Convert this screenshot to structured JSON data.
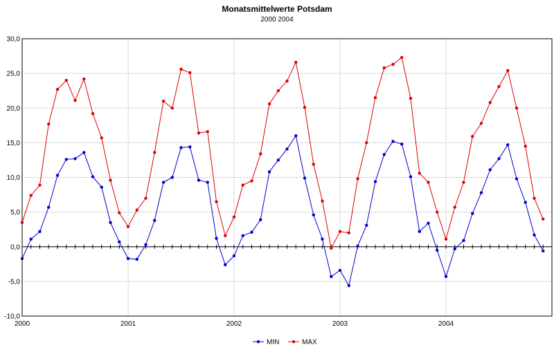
{
  "chart_data": {
    "type": "line",
    "title": "Monatsmittelwerte Potsdam",
    "subtitle": "2000 2004",
    "xlabel": "",
    "ylabel": "",
    "ylim": [
      -10,
      30
    ],
    "y_ticks": [
      "-10,0",
      "-5,0",
      "0,0",
      "5,0",
      "10,0",
      "15,0",
      "20,0",
      "25,0",
      "30,0"
    ],
    "y_tick_values": [
      -10,
      -5,
      0,
      5,
      10,
      15,
      20,
      25,
      30
    ],
    "x_ticks": [
      "2000",
      "2001",
      "2002",
      "2003",
      "2004"
    ],
    "x_tick_years": [
      2000,
      2001,
      2002,
      2003,
      2004
    ],
    "x_start": "2000-01",
    "x_end": "2004-12",
    "grid": true,
    "legend_position": "bottom",
    "series": [
      {
        "name": "MIN",
        "color": "#0000cc",
        "values": [
          -1.7,
          1.1,
          2.2,
          5.7,
          10.3,
          12.6,
          12.7,
          13.6,
          10.1,
          8.6,
          3.5,
          0.7,
          -1.7,
          -1.8,
          0.3,
          3.8,
          9.3,
          10.0,
          14.3,
          14.4,
          9.6,
          9.3,
          1.2,
          -2.6,
          -1.3,
          1.6,
          2.1,
          3.9,
          10.8,
          12.5,
          14.1,
          16.0,
          9.9,
          4.6,
          1.1,
          -4.3,
          -3.4,
          -5.6,
          0.1,
          3.1,
          9.4,
          13.3,
          15.2,
          14.8,
          10.1,
          2.2,
          3.4,
          -0.5,
          -4.3,
          -0.3,
          0.9,
          4.8,
          7.8,
          11.1,
          12.7,
          14.7,
          9.8,
          6.4,
          1.7,
          -0.6
        ]
      },
      {
        "name": "MAX",
        "color": "#dd0000",
        "values": [
          3.5,
          7.4,
          8.9,
          17.7,
          22.7,
          24.0,
          21.1,
          24.2,
          19.2,
          15.7,
          9.6,
          4.9,
          2.9,
          5.3,
          7.0,
          13.6,
          21.0,
          20.0,
          25.6,
          25.1,
          16.4,
          16.6,
          6.5,
          1.6,
          4.3,
          8.9,
          9.5,
          13.4,
          20.6,
          22.5,
          23.9,
          26.6,
          20.1,
          11.9,
          6.6,
          -0.2,
          2.2,
          2.0,
          9.8,
          15.0,
          21.5,
          25.8,
          26.3,
          27.3,
          21.4,
          10.6,
          9.3,
          5.0,
          1.1,
          5.7,
          9.3,
          15.9,
          17.8,
          20.8,
          23.1,
          25.4,
          20.0,
          14.5,
          7.0,
          4.0
        ]
      }
    ]
  }
}
